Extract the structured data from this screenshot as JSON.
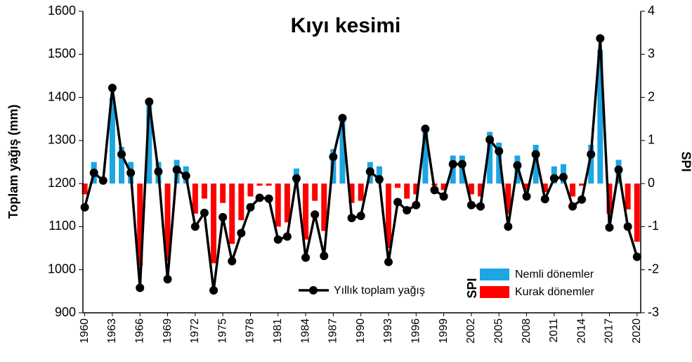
{
  "chart_data": {
    "type": "bar_line",
    "title": "Kıyı kesimi",
    "y_label": "Toplam yağış (mm)",
    "y2_label": "SPI",
    "legend_bar_title": "SPI",
    "x": [
      1960,
      1961,
      1962,
      1963,
      1964,
      1965,
      1966,
      1967,
      1968,
      1969,
      1970,
      1971,
      1972,
      1973,
      1974,
      1975,
      1976,
      1977,
      1978,
      1979,
      1980,
      1981,
      1982,
      1983,
      1984,
      1985,
      1986,
      1987,
      1988,
      1989,
      1990,
      1991,
      1992,
      1993,
      1994,
      1995,
      1996,
      1997,
      1998,
      1999,
      2000,
      2001,
      2002,
      2003,
      2004,
      2005,
      2006,
      2007,
      2008,
      2009,
      2010,
      2011,
      2012,
      2013,
      2014,
      2015,
      2016,
      2017,
      2018,
      2019,
      2020
    ],
    "xlim": [
      1959.8,
      2020.4
    ],
    "xticks": [
      1960,
      1963,
      1966,
      1969,
      1972,
      1975,
      1978,
      1981,
      1984,
      1987,
      1990,
      1993,
      1996,
      1999,
      2002,
      2005,
      2008,
      2011,
      2014,
      2017,
      2020
    ],
    "ylim": [
      900,
      1600
    ],
    "yticks": [
      900,
      1000,
      1100,
      1200,
      1300,
      1400,
      1500,
      1600
    ],
    "y2lim": [
      -3,
      4
    ],
    "y2ticks": [
      -3,
      -2,
      -1,
      0,
      1,
      2,
      3,
      4
    ],
    "series": [
      {
        "name": "Nemli dönemler",
        "type": "bar",
        "axis": "y2",
        "color": "#1ca6e2",
        "values": [
          null,
          0.5,
          0.1,
          2.0,
          0.85,
          0.5,
          null,
          1.9,
          0.5,
          null,
          0.55,
          0.4,
          null,
          null,
          null,
          null,
          null,
          null,
          null,
          null,
          null,
          null,
          null,
          0.35,
          null,
          null,
          null,
          0.8,
          1.45,
          null,
          null,
          0.5,
          0.4,
          null,
          null,
          null,
          null,
          1.3,
          null,
          null,
          0.65,
          0.65,
          null,
          null,
          1.2,
          0.95,
          null,
          0.65,
          null,
          0.9,
          null,
          0.4,
          0.45,
          null,
          null,
          0.9,
          3.1,
          null,
          0.55,
          null,
          null
        ]
      },
      {
        "name": "Kurak dönemler",
        "type": "bar",
        "axis": "y2",
        "color": "#ff0000",
        "values": [
          -0.25,
          null,
          null,
          null,
          null,
          null,
          -1.9,
          null,
          null,
          -1.8,
          null,
          null,
          -0.7,
          -0.35,
          -1.85,
          -0.45,
          -1.4,
          -0.85,
          -0.3,
          -0.05,
          -0.05,
          -1.0,
          -0.9,
          null,
          -1.3,
          -0.4,
          -1.1,
          null,
          null,
          -0.45,
          -0.4,
          null,
          null,
          -1.5,
          -0.1,
          -0.35,
          -0.25,
          null,
          -0.05,
          -0.15,
          null,
          null,
          -0.25,
          -0.3,
          null,
          null,
          -0.7,
          null,
          -0.15,
          null,
          -0.2,
          null,
          null,
          -0.3,
          -0.05,
          null,
          null,
          -0.7,
          null,
          -0.6,
          -1.35
        ]
      },
      {
        "name": "Yıllık toplam yağış",
        "type": "line",
        "color": "#000000",
        "values": [
          1145,
          1225,
          1207,
          1422,
          1268,
          1225,
          958,
          1390,
          1228,
          978,
          1232,
          1218,
          1100,
          1132,
          952,
          1122,
          1020,
          1085,
          1145,
          1167,
          1165,
          1070,
          1077,
          1212,
          1028,
          1128,
          1032,
          1262,
          1352,
          1120,
          1125,
          1228,
          1210,
          1018,
          1157,
          1138,
          1150,
          1327,
          1185,
          1170,
          1245,
          1245,
          1150,
          1147,
          1302,
          1275,
          1100,
          1242,
          1170,
          1268,
          1164,
          1212,
          1215,
          1147,
          1163,
          1268,
          1537,
          1098,
          1232,
          1100,
          1030
        ]
      }
    ]
  }
}
